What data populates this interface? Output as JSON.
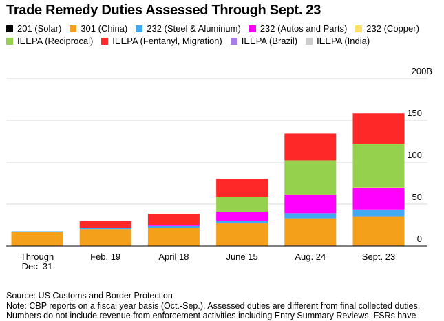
{
  "chart_data": {
    "type": "bar",
    "stacked": true,
    "title": "Trade Remedy Duties Assessed Through Sept. 23",
    "categories": [
      "Through|Dec. 31",
      "Feb. 19",
      "April 18",
      "June 15",
      "Aug. 24",
      "Sept. 23"
    ],
    "series": [
      {
        "name": "201 (Solar)",
        "color": "#000000",
        "values": [
          0.3,
          0.3,
          0.4,
          0.5,
          0.6,
          0.6
        ]
      },
      {
        "name": "301 (China)",
        "color": "#f5a01a",
        "values": [
          16.5,
          20,
          21.5,
          26.5,
          32.5,
          35
        ]
      },
      {
        "name": "232 (Steel & Aluminum)",
        "color": "#40a9f2",
        "values": [
          0.8,
          1.2,
          2,
          2.5,
          6,
          8
        ]
      },
      {
        "name": "232 (Autos and Parts)",
        "color": "#ff00ff",
        "values": [
          0,
          0,
          1.5,
          11.5,
          22.5,
          26
        ]
      },
      {
        "name": "232 (Copper)",
        "color": "#ffe066",
        "values": [
          0,
          0,
          0,
          0,
          0,
          0.4
        ]
      },
      {
        "name": "IEEPA (Reciprocal)",
        "color": "#96d14d",
        "values": [
          0,
          0,
          0,
          18,
          40.5,
          52
        ]
      },
      {
        "name": "IEEPA (Fentanyl, Migration)",
        "color": "#ff2828",
        "values": [
          0,
          8,
          13,
          21,
          32,
          36
        ]
      },
      {
        "name": "IEEPA (Brazil)",
        "color": "#a87dea",
        "values": [
          0,
          0,
          0,
          0,
          0,
          0
        ]
      },
      {
        "name": "IEEPA (India)",
        "color": "#cccccc",
        "values": [
          0,
          0,
          0,
          0,
          0,
          0
        ]
      }
    ],
    "ylim": [
      0,
      200
    ],
    "yticks": [
      0,
      50,
      100,
      150
    ],
    "ytick_labels": [
      "0",
      "50",
      "100",
      "150"
    ],
    "y_top_label": "200B",
    "xlabel": "",
    "ylabel": "",
    "grid": true
  },
  "footer": {
    "source": "Source: US Customs and Border Protection",
    "note": "Note: CBP reports on a fiscal year basis (Oct.-Sep.). Assessed duties are different from final collected duties.",
    "note2": "Numbers do not include revenue from enforcement activities including Entry Summary Reviews, FSRs have"
  }
}
